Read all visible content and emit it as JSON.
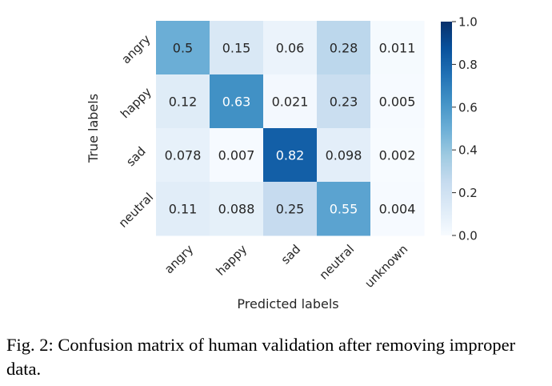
{
  "chart_data": {
    "type": "heatmap",
    "title": "",
    "xlabel": "Predicted labels",
    "ylabel": "True labels",
    "x_categories": [
      "angry",
      "happy",
      "sad",
      "neutral",
      "unknown"
    ],
    "y_categories": [
      "angry",
      "happy",
      "sad",
      "neutral"
    ],
    "values": [
      [
        0.5,
        0.15,
        0.06,
        0.28,
        0.011
      ],
      [
        0.12,
        0.63,
        0.021,
        0.23,
        0.005
      ],
      [
        0.078,
        0.007,
        0.82,
        0.098,
        0.002
      ],
      [
        0.11,
        0.088,
        0.25,
        0.55,
        0.004
      ]
    ],
    "value_labels": [
      [
        "0.5",
        "0.15",
        "0.06",
        "0.28",
        "0.011"
      ],
      [
        "0.12",
        "0.63",
        "0.021",
        "0.23",
        "0.005"
      ],
      [
        "0.078",
        "0.007",
        "0.82",
        "0.098",
        "0.002"
      ],
      [
        "0.11",
        "0.088",
        "0.25",
        "0.55",
        "0.004"
      ]
    ],
    "colormap": "Blues",
    "color_range": [
      0.0,
      1.0
    ],
    "colorbar_ticks": [
      1.0,
      0.8,
      0.6,
      0.4,
      0.2,
      0.0
    ],
    "colorbar_tick_labels": [
      "1.0",
      "0.8",
      "0.6",
      "0.4",
      "0.2",
      "0.0"
    ]
  },
  "caption": {
    "label": "Fig. 2:",
    "text": "Confusion matrix of human validation after removing improper data."
  }
}
